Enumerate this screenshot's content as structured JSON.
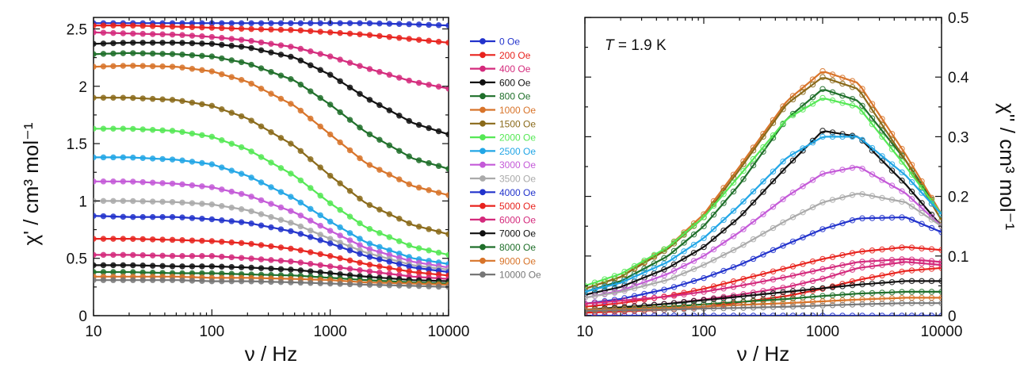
{
  "chart_data": [
    {
      "type": "line",
      "ylabel": "χ' / cm³ mol⁻¹",
      "xlabel": "ν / Hz",
      "xscale": "log",
      "xlim": [
        10,
        10000
      ],
      "ylim": [
        0,
        2.6
      ],
      "xticks": [
        "10",
        "100",
        "1000",
        "10000"
      ],
      "yticks": [
        "0",
        "0.5",
        "1",
        "1.5",
        "2",
        "2.5"
      ],
      "grid": false,
      "legend_position": "right, between panels",
      "x": [
        10,
        20,
        50,
        100,
        200,
        500,
        1000,
        2000,
        5000,
        10000
      ],
      "series": [
        {
          "name": "0 Oe",
          "color": "#2233cc",
          "values": [
            2.55,
            2.55,
            2.55,
            2.55,
            2.55,
            2.55,
            2.55,
            2.55,
            2.54,
            2.53
          ]
        },
        {
          "name": "200 Oe",
          "color": "#e8231e",
          "values": [
            2.53,
            2.53,
            2.52,
            2.51,
            2.5,
            2.49,
            2.47,
            2.45,
            2.41,
            2.38
          ]
        },
        {
          "name": "400 Oe",
          "color": "#d42a7c",
          "values": [
            2.47,
            2.46,
            2.45,
            2.43,
            2.4,
            2.34,
            2.26,
            2.16,
            2.04,
            1.98
          ]
        },
        {
          "name": "600 Oe",
          "color": "#111111",
          "values": [
            2.37,
            2.38,
            2.38,
            2.37,
            2.34,
            2.25,
            2.1,
            1.9,
            1.68,
            1.58
          ]
        },
        {
          "name": "800 Oe",
          "color": "#1f6f2a",
          "values": [
            2.28,
            2.29,
            2.28,
            2.26,
            2.2,
            2.05,
            1.84,
            1.6,
            1.37,
            1.28
          ]
        },
        {
          "name": "1000 Oe",
          "color": "#d8742a",
          "values": [
            2.17,
            2.18,
            2.17,
            2.13,
            2.04,
            1.83,
            1.58,
            1.33,
            1.13,
            1.05
          ]
        },
        {
          "name": "1500 Oe",
          "color": "#8a6a1a",
          "values": [
            1.9,
            1.9,
            1.88,
            1.83,
            1.72,
            1.48,
            1.22,
            0.98,
            0.79,
            0.71
          ]
        },
        {
          "name": "2000 Oe",
          "color": "#55e855",
          "values": [
            1.63,
            1.63,
            1.61,
            1.56,
            1.45,
            1.22,
            0.98,
            0.77,
            0.6,
            0.53
          ]
        },
        {
          "name": "2500 Oe",
          "color": "#22a6e6",
          "values": [
            1.38,
            1.38,
            1.36,
            1.32,
            1.22,
            1.02,
            0.82,
            0.64,
            0.5,
            0.45
          ]
        },
        {
          "name": "3000 Oe",
          "color": "#c45ad8",
          "values": [
            1.17,
            1.17,
            1.15,
            1.12,
            1.05,
            0.9,
            0.74,
            0.59,
            0.47,
            0.42
          ]
        },
        {
          "name": "3500 Oe",
          "color": "#aaaaaa",
          "values": [
            1.0,
            1.0,
            0.99,
            0.97,
            0.92,
            0.8,
            0.67,
            0.55,
            0.44,
            0.4
          ]
        },
        {
          "name": "4000 Oe",
          "color": "#2233cc",
          "values": [
            0.87,
            0.86,
            0.86,
            0.84,
            0.81,
            0.73,
            0.63,
            0.52,
            0.42,
            0.38
          ]
        },
        {
          "name": "5000 Oe",
          "color": "#e8231e",
          "values": [
            0.67,
            0.67,
            0.66,
            0.65,
            0.63,
            0.58,
            0.52,
            0.45,
            0.38,
            0.35
          ]
        },
        {
          "name": "6000 Oe",
          "color": "#d42a7c",
          "values": [
            0.53,
            0.53,
            0.52,
            0.52,
            0.5,
            0.47,
            0.43,
            0.39,
            0.34,
            0.32
          ]
        },
        {
          "name": "7000 Oe",
          "color": "#111111",
          "values": [
            0.44,
            0.44,
            0.43,
            0.43,
            0.42,
            0.4,
            0.37,
            0.34,
            0.31,
            0.3
          ]
        },
        {
          "name": "8000 Oe",
          "color": "#1f6f2a",
          "values": [
            0.38,
            0.38,
            0.37,
            0.37,
            0.36,
            0.35,
            0.33,
            0.31,
            0.29,
            0.28
          ]
        },
        {
          "name": "9000 Oe",
          "color": "#d8742a",
          "values": [
            0.34,
            0.34,
            0.34,
            0.33,
            0.33,
            0.32,
            0.31,
            0.29,
            0.28,
            0.27
          ]
        },
        {
          "name": "10000 Oe",
          "color": "#777777",
          "values": [
            0.31,
            0.31,
            0.31,
            0.3,
            0.3,
            0.29,
            0.28,
            0.27,
            0.26,
            0.25
          ]
        }
      ]
    },
    {
      "type": "line",
      "ylabel": "χ'' / cm³ mol⁻¹",
      "xlabel": "ν / Hz",
      "xscale": "log",
      "xlim": [
        10,
        10000
      ],
      "ylim": [
        0,
        0.5
      ],
      "xticks": [
        "10",
        "100",
        "1000",
        "10000"
      ],
      "yticks": [
        "0",
        "0.1",
        "0.2",
        "0.3",
        "0.4",
        "0.5"
      ],
      "grid": false,
      "annotation": {
        "italic": "T",
        "text": " = 1.9 K"
      },
      "x": [
        10,
        20,
        50,
        100,
        200,
        500,
        1000,
        2000,
        5000,
        10000
      ],
      "series": [
        {
          "name": "0 Oe",
          "color": "#2233cc",
          "values": [
            0.0,
            0.0,
            0.0,
            0.0,
            0.0,
            0.0,
            0.0,
            0.0,
            0.0,
            0.0
          ]
        },
        {
          "name": "200 Oe",
          "color": "#e8231e",
          "values": [
            0.005,
            0.007,
            0.01,
            0.015,
            0.022,
            0.033,
            0.045,
            0.06,
            0.075,
            0.08
          ]
        },
        {
          "name": "400 Oe",
          "color": "#d42a7c",
          "values": [
            0.01,
            0.013,
            0.02,
            0.027,
            0.035,
            0.048,
            0.062,
            0.08,
            0.09,
            0.085
          ]
        },
        {
          "name": "600 Oe",
          "color": "#111111",
          "values": [
            0.035,
            0.048,
            0.08,
            0.115,
            0.165,
            0.25,
            0.31,
            0.3,
            0.22,
            0.15
          ]
        },
        {
          "name": "800 Oe",
          "color": "#1f6f2a",
          "values": [
            0.04,
            0.058,
            0.1,
            0.15,
            0.22,
            0.33,
            0.38,
            0.36,
            0.26,
            0.17
          ]
        },
        {
          "name": "1000 Oe",
          "color": "#d8742a",
          "values": [
            0.045,
            0.065,
            0.115,
            0.17,
            0.25,
            0.36,
            0.41,
            0.39,
            0.27,
            0.17
          ]
        },
        {
          "name": "1500 Oe",
          "color": "#8a6a1a",
          "values": [
            0.045,
            0.065,
            0.112,
            0.165,
            0.245,
            0.355,
            0.4,
            0.38,
            0.26,
            0.16
          ]
        },
        {
          "name": "2000 Oe",
          "color": "#55e855",
          "values": [
            0.05,
            0.07,
            0.115,
            0.165,
            0.235,
            0.33,
            0.365,
            0.35,
            0.25,
            0.17
          ]
        },
        {
          "name": "2500 Oe",
          "color": "#22a6e6",
          "values": [
            0.04,
            0.055,
            0.09,
            0.13,
            0.185,
            0.265,
            0.3,
            0.3,
            0.235,
            0.17
          ]
        },
        {
          "name": "3000 Oe",
          "color": "#c45ad8",
          "values": [
            0.03,
            0.042,
            0.07,
            0.1,
            0.14,
            0.2,
            0.238,
            0.25,
            0.205,
            0.15
          ]
        },
        {
          "name": "3500 Oe",
          "color": "#aaaaaa",
          "values": [
            0.03,
            0.04,
            0.06,
            0.085,
            0.115,
            0.16,
            0.19,
            0.205,
            0.19,
            0.15
          ]
        },
        {
          "name": "4000 Oe",
          "color": "#2233cc",
          "values": [
            0.02,
            0.028,
            0.045,
            0.063,
            0.085,
            0.12,
            0.145,
            0.163,
            0.165,
            0.14
          ]
        },
        {
          "name": "5000 Oe",
          "color": "#e8231e",
          "values": [
            0.015,
            0.021,
            0.033,
            0.045,
            0.06,
            0.08,
            0.095,
            0.107,
            0.115,
            0.11
          ]
        },
        {
          "name": "6000 Oe",
          "color": "#d42a7c",
          "values": [
            0.02,
            0.025,
            0.032,
            0.04,
            0.05,
            0.065,
            0.078,
            0.09,
            0.095,
            0.09
          ]
        },
        {
          "name": "7000 Oe",
          "color": "#111111",
          "values": [
            0.01,
            0.014,
            0.02,
            0.026,
            0.032,
            0.04,
            0.046,
            0.052,
            0.058,
            0.058
          ]
        },
        {
          "name": "8000 Oe",
          "color": "#1f6f2a",
          "values": [
            0.01,
            0.012,
            0.015,
            0.019,
            0.023,
            0.028,
            0.033,
            0.037,
            0.04,
            0.04
          ]
        },
        {
          "name": "9000 Oe",
          "color": "#d8742a",
          "values": [
            0.01,
            0.011,
            0.013,
            0.015,
            0.018,
            0.021,
            0.024,
            0.027,
            0.03,
            0.03
          ]
        },
        {
          "name": "10000 Oe",
          "color": "#777777",
          "values": [
            0.008,
            0.009,
            0.01,
            0.012,
            0.013,
            0.015,
            0.017,
            0.019,
            0.021,
            0.021
          ]
        }
      ]
    }
  ]
}
